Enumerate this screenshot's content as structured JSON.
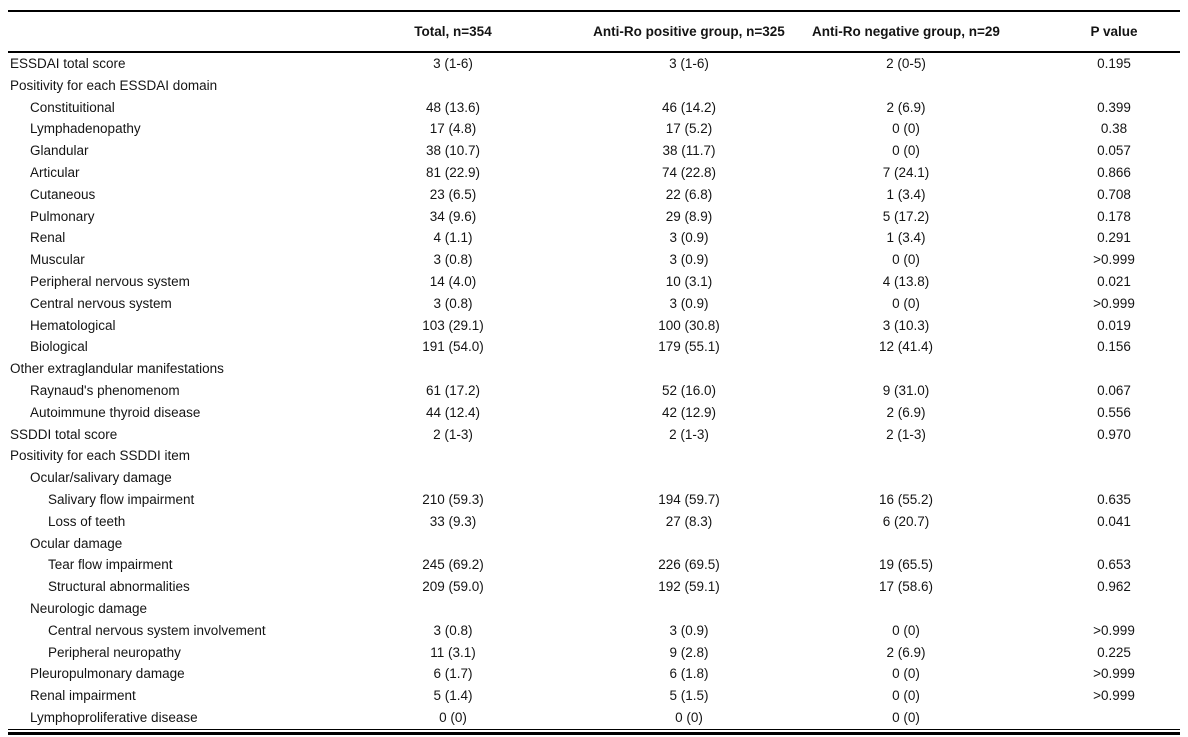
{
  "page": {
    "background_color": "#ffffff",
    "text_color": "#141414",
    "rule_color": "#000000"
  },
  "table": {
    "columns": [
      {
        "key": "label",
        "label": ""
      },
      {
        "key": "total",
        "label": "Total, n=354"
      },
      {
        "key": "positive",
        "label": "Anti-Ro positive group, n=325"
      },
      {
        "key": "negative",
        "label": "Anti-Ro negative group, n=29"
      },
      {
        "key": "p",
        "label": "P value"
      }
    ],
    "rows": [
      {
        "indent": 0,
        "label": "ESSDAI total score",
        "total": "3 (1-6)",
        "positive": "3 (1-6)",
        "negative": "2 (0-5)",
        "p": "0.195"
      },
      {
        "indent": 0,
        "label": "Positivity for each ESSDAI domain",
        "total": "",
        "positive": "",
        "negative": "",
        "p": ""
      },
      {
        "indent": 1,
        "label": "Constituitional",
        "total": "48 (13.6)",
        "positive": "46 (14.2)",
        "negative": "2 (6.9)",
        "p": "0.399"
      },
      {
        "indent": 1,
        "label": "Lymphadenopathy",
        "total": "17 (4.8)",
        "positive": "17 (5.2)",
        "negative": "0 (0)",
        "p": "0.38"
      },
      {
        "indent": 1,
        "label": "Glandular",
        "total": "38 (10.7)",
        "positive": "38 (11.7)",
        "negative": "0 (0)",
        "p": "0.057"
      },
      {
        "indent": 1,
        "label": "Articular",
        "total": "81 (22.9)",
        "positive": "74 (22.8)",
        "negative": "7 (24.1)",
        "p": "0.866"
      },
      {
        "indent": 1,
        "label": "Cutaneous",
        "total": "23 (6.5)",
        "positive": "22 (6.8)",
        "negative": "1 (3.4)",
        "p": "0.708"
      },
      {
        "indent": 1,
        "label": "Pulmonary",
        "total": "34 (9.6)",
        "positive": "29 (8.9)",
        "negative": "5 (17.2)",
        "p": "0.178"
      },
      {
        "indent": 1,
        "label": "Renal",
        "total": "4 (1.1)",
        "positive": "3 (0.9)",
        "negative": "1 (3.4)",
        "p": "0.291"
      },
      {
        "indent": 1,
        "label": "Muscular",
        "total": "3 (0.8)",
        "positive": "3 (0.9)",
        "negative": "0 (0)",
        "p": ">0.999"
      },
      {
        "indent": 1,
        "label": "Peripheral nervous system",
        "total": "14 (4.0)",
        "positive": "10 (3.1)",
        "negative": "4 (13.8)",
        "p": "0.021"
      },
      {
        "indent": 1,
        "label": "Central nervous system",
        "total": "3 (0.8)",
        "positive": "3 (0.9)",
        "negative": "0 (0)",
        "p": ">0.999"
      },
      {
        "indent": 1,
        "label": "Hematological",
        "total": "103 (29.1)",
        "positive": "100 (30.8)",
        "negative": "3 (10.3)",
        "p": "0.019"
      },
      {
        "indent": 1,
        "label": "Biological",
        "total": "191 (54.0)",
        "positive": "179 (55.1)",
        "negative": "12 (41.4)",
        "p": "0.156"
      },
      {
        "indent": 0,
        "label": "Other extraglandular manifestations",
        "total": "",
        "positive": "",
        "negative": "",
        "p": ""
      },
      {
        "indent": 1,
        "label": "Raynaud's phenomenom",
        "total": "61 (17.2)",
        "positive": "52 (16.0)",
        "negative": "9 (31.0)",
        "p": "0.067"
      },
      {
        "indent": 1,
        "label": "Autoimmune thyroid disease",
        "total": "44 (12.4)",
        "positive": "42 (12.9)",
        "negative": "2 (6.9)",
        "p": "0.556"
      },
      {
        "indent": 0,
        "label": "SSDDI total score",
        "total": "2 (1-3)",
        "positive": "2 (1-3)",
        "negative": "2 (1-3)",
        "p": "0.970"
      },
      {
        "indent": 0,
        "label": "Positivity for each SSDDI item",
        "total": "",
        "positive": "",
        "negative": "",
        "p": ""
      },
      {
        "indent": 1,
        "label": "Ocular/salivary damage",
        "total": "",
        "positive": "",
        "negative": "",
        "p": ""
      },
      {
        "indent": 2,
        "label": "Salivary flow impairment",
        "total": "210 (59.3)",
        "positive": "194 (59.7)",
        "negative": "16 (55.2)",
        "p": "0.635"
      },
      {
        "indent": 2,
        "label": "Loss of teeth",
        "total": "33 (9.3)",
        "positive": "27 (8.3)",
        "negative": "6 (20.7)",
        "p": "0.041"
      },
      {
        "indent": 1,
        "label": "Ocular damage",
        "total": "",
        "positive": "",
        "negative": "",
        "p": ""
      },
      {
        "indent": 2,
        "label": "Tear flow impairment",
        "total": "245 (69.2)",
        "positive": "226 (69.5)",
        "negative": "19 (65.5)",
        "p": "0.653"
      },
      {
        "indent": 2,
        "label": "Structural abnormalities",
        "total": "209 (59.0)",
        "positive": "192 (59.1)",
        "negative": "17 (58.6)",
        "p": "0.962"
      },
      {
        "indent": 1,
        "label": "Neurologic damage",
        "total": "",
        "positive": "",
        "negative": "",
        "p": ""
      },
      {
        "indent": 2,
        "label": "Central nervous system involvement",
        "total": "3 (0.8)",
        "positive": "3 (0.9)",
        "negative": "0 (0)",
        "p": ">0.999"
      },
      {
        "indent": 2,
        "label": "Peripheral neuropathy",
        "total": "11 (3.1)",
        "positive": "9 (2.8)",
        "negative": "2 (6.9)",
        "p": "0.225"
      },
      {
        "indent": 1,
        "label": "Pleuropulmonary damage",
        "total": "6 (1.7)",
        "positive": "6 (1.8)",
        "negative": "0 (0)",
        "p": ">0.999"
      },
      {
        "indent": 1,
        "label": "Renal impairment",
        "total": "5 (1.4)",
        "positive": "5 (1.5)",
        "negative": "0 (0)",
        "p": ">0.999"
      },
      {
        "indent": 1,
        "label": "Lymphoproliferative disease",
        "total": "0 (0)",
        "positive": "0 (0)",
        "negative": "0 (0)",
        "p": ""
      }
    ]
  }
}
